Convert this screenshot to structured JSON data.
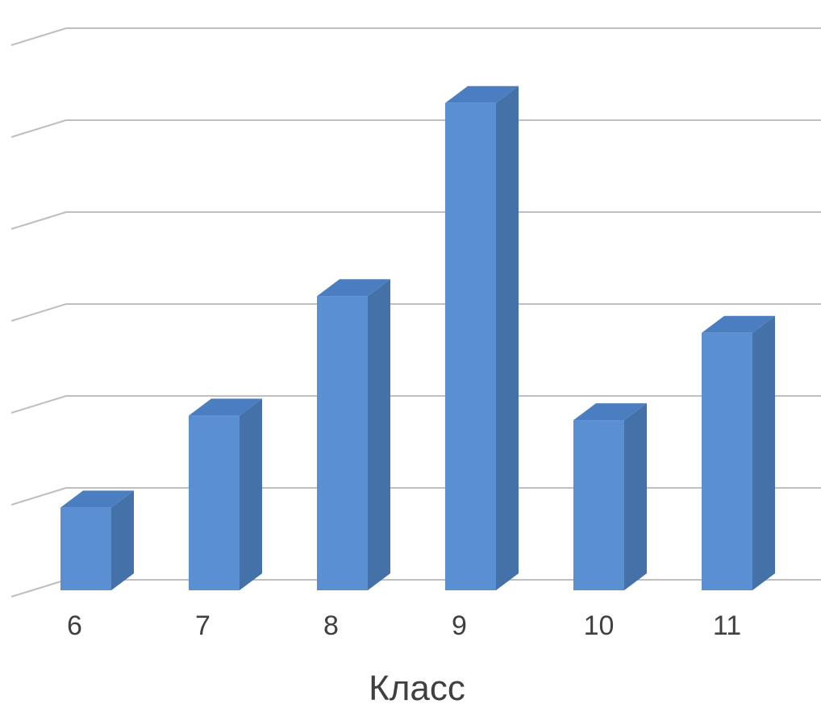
{
  "chart_data": {
    "type": "bar",
    "categories": [
      "6",
      "7",
      "8",
      "9",
      "10",
      "11"
    ],
    "values": [
      0.9,
      1.9,
      3.2,
      5.3,
      1.85,
      2.8
    ],
    "title": "",
    "xlabel": "Класс",
    "ylabel": "",
    "ylim": [
      0,
      6
    ],
    "grid": true,
    "legend": "none",
    "three_d": true
  },
  "colors": {
    "bar_front": "#5a8fd1",
    "bar_side": "#4371a8",
    "bar_top": "#4a7ec1",
    "grid": "#bfbfbf",
    "text": "#404040"
  }
}
